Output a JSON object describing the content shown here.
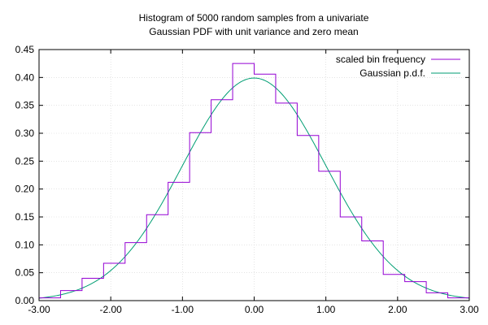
{
  "chart_data": {
    "type": "line",
    "title_lines": [
      "Histogram of 5000 random samples from a univariate",
      "Gaussian PDF with unit variance and zero mean"
    ],
    "xlim": [
      -3.0,
      3.0
    ],
    "ylim": [
      0.0,
      0.45
    ],
    "x_ticks": [
      -3,
      -2,
      -1,
      0,
      1,
      2,
      3
    ],
    "x_tick_labels": [
      "-3.00",
      "-2.00",
      "-1.00",
      "0.00",
      "1.00",
      "2.00",
      "3.00"
    ],
    "y_ticks": [
      0,
      0.05,
      0.1,
      0.15,
      0.2,
      0.25,
      0.3,
      0.35,
      0.4,
      0.45
    ],
    "y_tick_labels": [
      "0.00",
      "0.05",
      "0.10",
      "0.15",
      "0.20",
      "0.25",
      "0.30",
      "0.35",
      "0.40",
      "0.45"
    ],
    "grid": true,
    "legend_position": "top-right",
    "series": [
      {
        "name": "scaled bin frequency",
        "kind": "step",
        "color": "#9400d3",
        "bin_edges": [
          -3.0,
          -2.7,
          -2.4,
          -2.1,
          -1.8,
          -1.5,
          -1.2,
          -0.9,
          -0.6,
          -0.3,
          0.0,
          0.3,
          0.6,
          0.9,
          1.2,
          1.5,
          1.8,
          2.1,
          2.4,
          2.7,
          3.0
        ],
        "values": [
          0.005,
          0.018,
          0.04,
          0.067,
          0.104,
          0.154,
          0.212,
          0.301,
          0.36,
          0.425,
          0.406,
          0.354,
          0.296,
          0.232,
          0.15,
          0.107,
          0.047,
          0.034,
          0.014,
          0.005
        ]
      },
      {
        "name": "Gaussian p.d.f.",
        "kind": "function",
        "color": "#009e73",
        "mean": 0,
        "variance": 1
      }
    ]
  }
}
